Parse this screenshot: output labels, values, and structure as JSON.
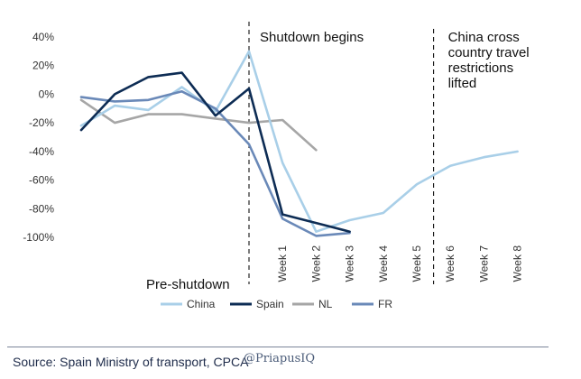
{
  "chart_data": {
    "type": "line",
    "title": "",
    "xlabel": "",
    "ylabel": "",
    "ylim": [
      -100,
      40
    ],
    "yticks": [
      40,
      20,
      0,
      -20,
      -40,
      -60,
      -80,
      -100
    ],
    "ytick_labels": [
      "40%",
      "20%",
      "0%",
      "-20%",
      "-40%",
      "-60%",
      "-80%",
      "-100%"
    ],
    "x_labels": [
      "Week 1",
      "Week 2",
      "Week 3",
      "Week 4",
      "Week 5",
      "Week 6",
      "Week 7",
      "Week 8"
    ],
    "grid": false,
    "legend_position": "bottom",
    "series": [
      {
        "name": "China",
        "color": "#a9cfe8",
        "points": [
          [
            -5,
            -22
          ],
          [
            -4,
            -8
          ],
          [
            -3,
            -11
          ],
          [
            -2,
            5
          ],
          [
            -1,
            -12
          ],
          [
            0,
            30
          ],
          [
            1,
            -48
          ],
          [
            2,
            -96
          ],
          [
            3,
            -88
          ],
          [
            4,
            -83
          ],
          [
            5,
            -63
          ],
          [
            6,
            -50
          ],
          [
            7,
            -44
          ],
          [
            8,
            -40
          ]
        ]
      },
      {
        "name": "Spain",
        "color": "#0d2c54",
        "points": [
          [
            -5,
            -25
          ],
          [
            -4,
            0
          ],
          [
            -3,
            12
          ],
          [
            -2,
            15
          ],
          [
            -1,
            -15
          ],
          [
            0,
            4
          ],
          [
            1,
            -84
          ],
          [
            2,
            -90
          ],
          [
            3,
            -96
          ]
        ]
      },
      {
        "name": "NL",
        "color": "#a6a6a6",
        "points": [
          [
            -5,
            -4
          ],
          [
            -4,
            -20
          ],
          [
            -3,
            -14
          ],
          [
            -2,
            -14
          ],
          [
            -1,
            -17
          ],
          [
            0,
            -20
          ],
          [
            1,
            -18
          ],
          [
            2,
            -39
          ]
        ]
      },
      {
        "name": "FR",
        "color": "#6a89b8",
        "points": [
          [
            -5,
            -2
          ],
          [
            -4,
            -5
          ],
          [
            -3,
            -4
          ],
          [
            -2,
            2
          ],
          [
            -1,
            -10
          ],
          [
            0,
            -35
          ],
          [
            1,
            -87
          ],
          [
            2,
            -99
          ],
          [
            3,
            -97
          ]
        ]
      }
    ],
    "annotations": [
      {
        "text_lines": [
          "Shutdown begins"
        ],
        "at_x": 0
      },
      {
        "text_lines": [
          "China cross",
          "country travel",
          "restrictions",
          "lifted"
        ],
        "at_x": 5.5
      },
      {
        "text_lines": [
          "Pre-shutdown"
        ],
        "at_x": -3
      }
    ]
  },
  "source": "Source: Spain Ministry of transport, CPCA",
  "watermark": "@PriapusIQ"
}
